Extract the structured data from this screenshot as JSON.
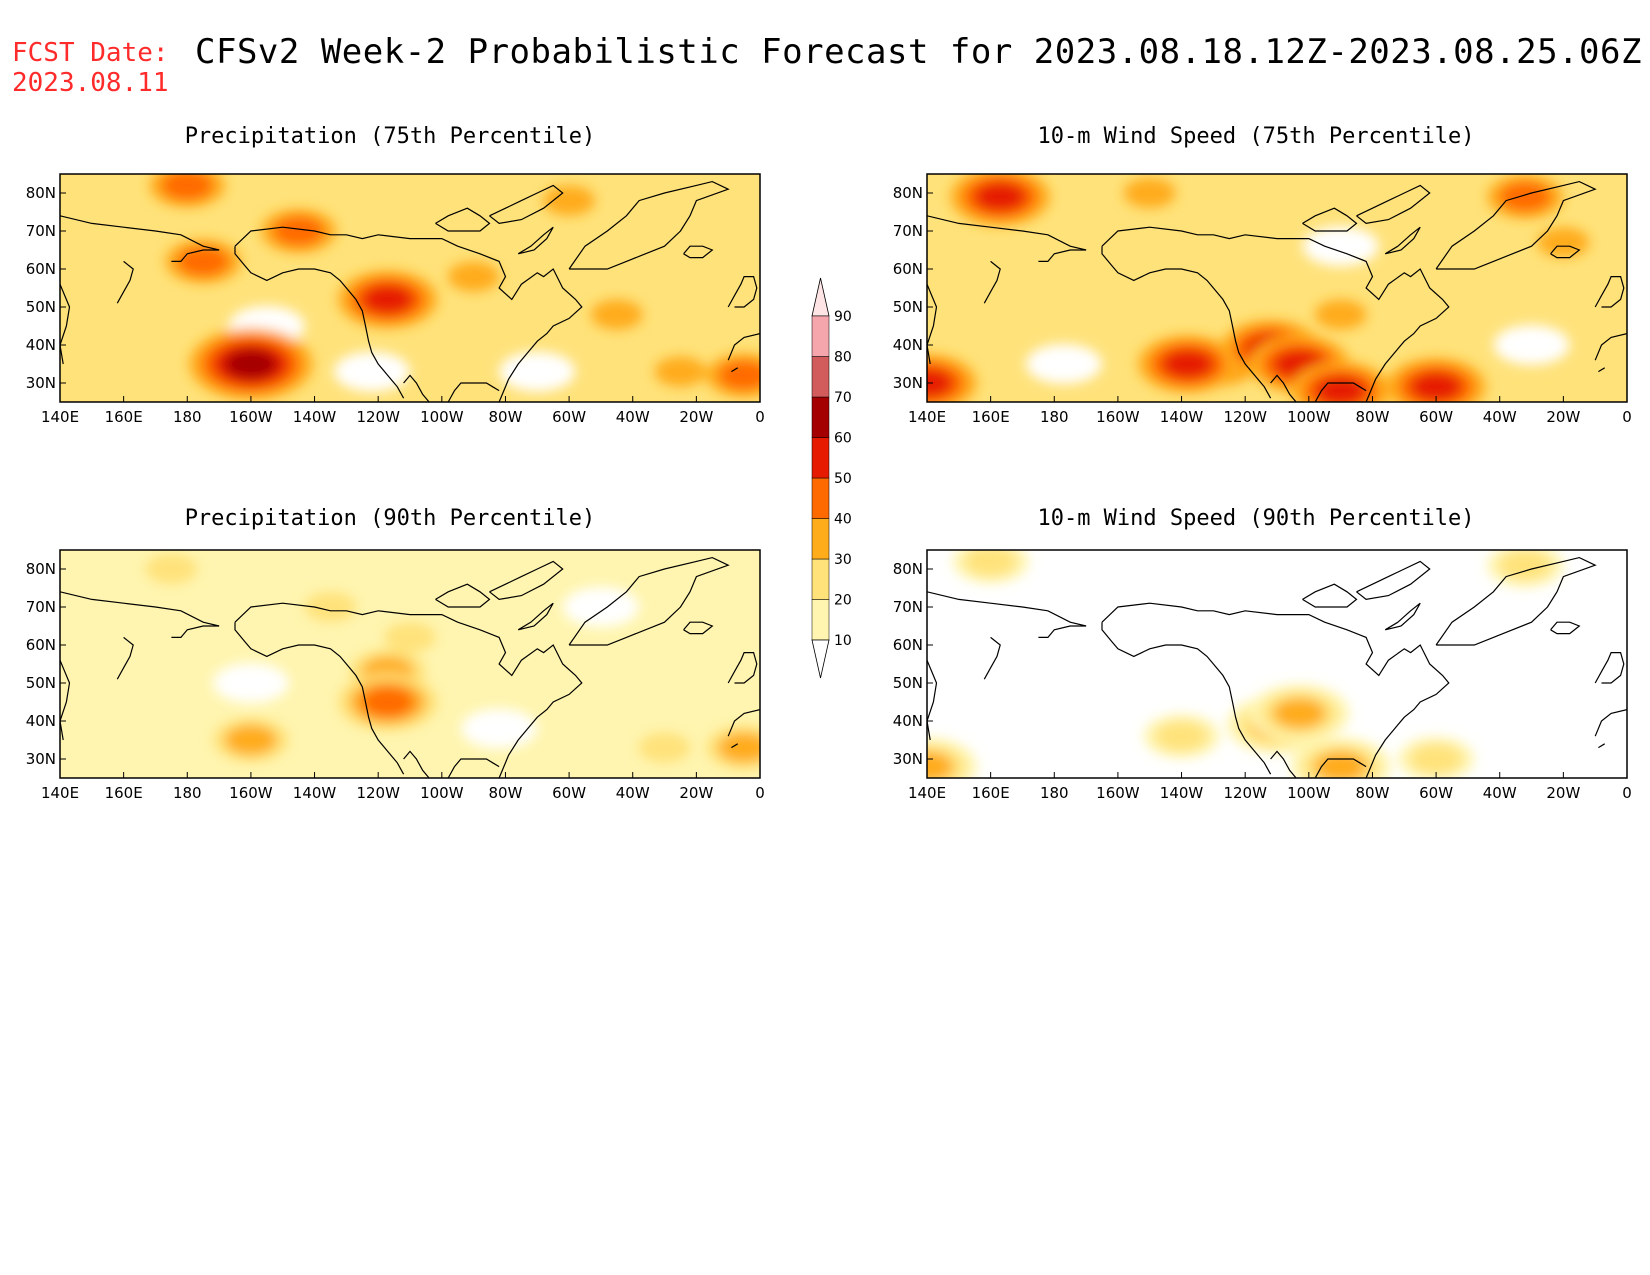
{
  "header": {
    "fcst_label": "FCST Date:",
    "fcst_date": "2023.08.11",
    "title": "CFSv2 Week-2 Probabilistic Forecast for 2023.08.18.12Z-2023.08.25.06Z"
  },
  "axes": {
    "lat_labels": [
      "80N",
      "70N",
      "60N",
      "50N",
      "40N",
      "30N"
    ],
    "lon_labels": [
      "140E",
      "160E",
      "180",
      "160W",
      "140W",
      "120W",
      "100W",
      "80W",
      "60W",
      "40W",
      "20W",
      "0"
    ]
  },
  "colorbar": {
    "levels": [
      "10",
      "20",
      "30",
      "40",
      "50",
      "60",
      "70",
      "80",
      "90"
    ],
    "colors": [
      "#ffffff",
      "#fff5b0",
      "#ffe27a",
      "#ffac1a",
      "#ff6a00",
      "#e61a00",
      "#a50000",
      "#d25c5c",
      "#f4a6ac",
      "#ffe4e6"
    ]
  },
  "chart_data": [
    {
      "type": "heatmap",
      "title": "Precipitation (75th Percentile)",
      "xrange": [
        140,
        360
      ],
      "yrange": [
        25,
        85
      ],
      "base_level": 20,
      "hotspots": [
        {
          "lon": 200,
          "lat": 35,
          "level": 60
        },
        {
          "lon": 243,
          "lat": 52,
          "level": 50
        },
        {
          "lon": 180,
          "lat": 82,
          "level": 40
        },
        {
          "lon": 215,
          "lat": 70,
          "level": 40
        },
        {
          "lon": 185,
          "lat": 62,
          "level": 40
        },
        {
          "lon": 300,
          "lat": 78,
          "level": 30
        },
        {
          "lon": 270,
          "lat": 58,
          "level": 30
        },
        {
          "lon": 315,
          "lat": 48,
          "level": 30
        },
        {
          "lon": 355,
          "lat": 32,
          "level": 40
        },
        {
          "lon": 335,
          "lat": 33,
          "level": 30
        }
      ],
      "lows": [
        {
          "lon": 205,
          "lat": 45
        },
        {
          "lon": 238,
          "lat": 33
        },
        {
          "lon": 290,
          "lat": 33
        }
      ]
    },
    {
      "type": "heatmap",
      "title": "10-m Wind Speed (75th Percentile)",
      "xrange": [
        140,
        360
      ],
      "yrange": [
        25,
        85
      ],
      "base_level": 20,
      "hotspots": [
        {
          "lon": 163,
          "lat": 79,
          "level": 50
        },
        {
          "lon": 222,
          "lat": 35,
          "level": 50
        },
        {
          "lon": 248,
          "lat": 39,
          "level": 50
        },
        {
          "lon": 257,
          "lat": 35,
          "level": 50
        },
        {
          "lon": 270,
          "lat": 28,
          "level": 50
        },
        {
          "lon": 300,
          "lat": 29,
          "level": 50
        },
        {
          "lon": 328,
          "lat": 79,
          "level": 40
        },
        {
          "lon": 140,
          "lat": 30,
          "level": 50
        },
        {
          "lon": 232,
          "lat": 35,
          "level": 40
        },
        {
          "lon": 270,
          "lat": 48,
          "level": 30
        },
        {
          "lon": 210,
          "lat": 80,
          "level": 30
        },
        {
          "lon": 340,
          "lat": 67,
          "level": 30
        }
      ],
      "lows": [
        {
          "lon": 183,
          "lat": 35
        },
        {
          "lon": 330,
          "lat": 40
        },
        {
          "lon": 270,
          "lat": 66
        }
      ]
    },
    {
      "type": "heatmap",
      "title": "Precipitation (90th Percentile)",
      "xrange": [
        140,
        360
      ],
      "yrange": [
        25,
        85
      ],
      "base_level": 10,
      "hotspots": [
        {
          "lon": 200,
          "lat": 35,
          "level": 30
        },
        {
          "lon": 243,
          "lat": 53,
          "level": 30
        },
        {
          "lon": 243,
          "lat": 45,
          "level": 40
        },
        {
          "lon": 355,
          "lat": 33,
          "level": 30
        },
        {
          "lon": 175,
          "lat": 80,
          "level": 20
        },
        {
          "lon": 225,
          "lat": 70,
          "level": 20
        },
        {
          "lon": 250,
          "lat": 62,
          "level": 20
        },
        {
          "lon": 330,
          "lat": 33,
          "level": 20
        }
      ],
      "lows": [
        {
          "lon": 200,
          "lat": 50
        },
        {
          "lon": 278,
          "lat": 38
        },
        {
          "lon": 310,
          "lat": 70
        }
      ]
    },
    {
      "type": "heatmap",
      "title": "10-m Wind Speed (90th Percentile)",
      "xrange": [
        140,
        360
      ],
      "yrange": [
        25,
        85
      ],
      "base_level": 0,
      "hotspots": [
        {
          "lon": 250,
          "lat": 39,
          "level": 30
        },
        {
          "lon": 257,
          "lat": 42,
          "level": 30
        },
        {
          "lon": 270,
          "lat": 28,
          "level": 30
        },
        {
          "lon": 140,
          "lat": 28,
          "level": 30
        },
        {
          "lon": 328,
          "lat": 81,
          "level": 20
        },
        {
          "lon": 220,
          "lat": 36,
          "level": 20
        },
        {
          "lon": 300,
          "lat": 30,
          "level": 20
        },
        {
          "lon": 160,
          "lat": 82,
          "level": 20
        }
      ],
      "lows": []
    }
  ]
}
